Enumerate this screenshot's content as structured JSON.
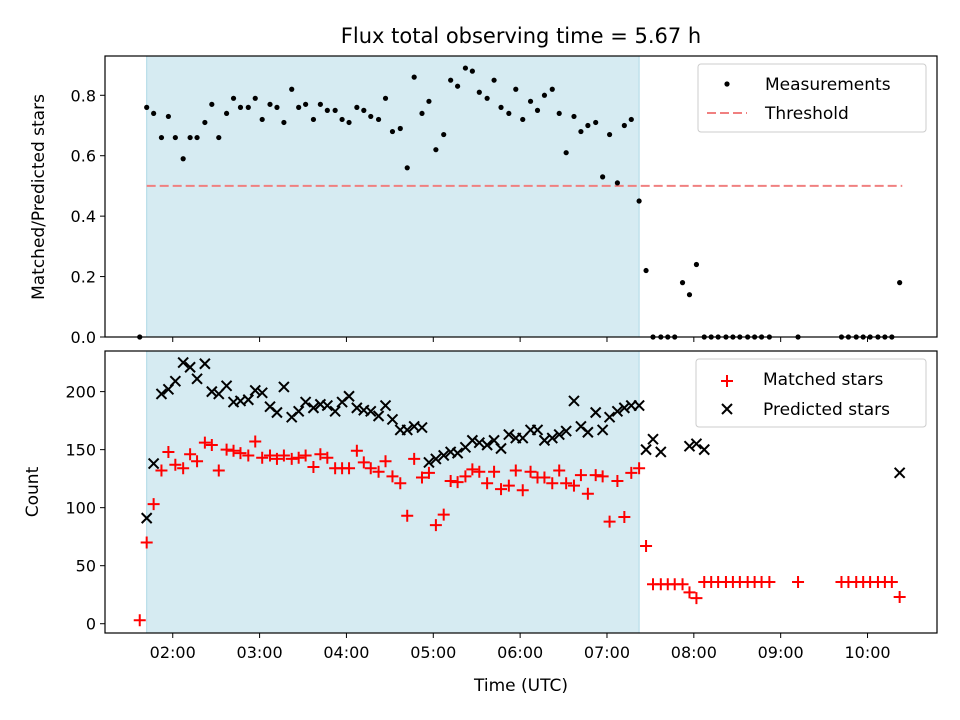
{
  "chart_data": [
    {
      "type": "scatter",
      "title": "Flux total observing time = 5.67 h",
      "xlabel": "",
      "ylabel": "Matched/Predicted stars",
      "xlim": [
        1.22,
        10.8
      ],
      "ylim": [
        0.0,
        0.93
      ],
      "y_ticks": [
        0.0,
        0.2,
        0.4,
        0.6,
        0.8
      ],
      "y_tick_labels": [
        "0.0",
        "0.2",
        "0.4",
        "0.6",
        "0.8"
      ],
      "shaded_interval": [
        1.7,
        7.37
      ],
      "threshold": {
        "value": 0.5,
        "x_range": [
          1.7,
          10.4
        ]
      },
      "legend": [
        "Measurements",
        "Threshold"
      ],
      "colors": {
        "measurements": "#000000",
        "threshold": "#f08080",
        "shade": "#add8e6"
      },
      "series": [
        {
          "name": "Measurements",
          "x": [
            1.62,
            1.7,
            1.78,
            1.87,
            1.95,
            2.03,
            2.12,
            2.2,
            2.28,
            2.37,
            2.45,
            2.53,
            2.62,
            2.7,
            2.78,
            2.87,
            2.95,
            3.03,
            3.12,
            3.2,
            3.28,
            3.37,
            3.45,
            3.53,
            3.62,
            3.7,
            3.78,
            3.87,
            3.95,
            4.03,
            4.12,
            4.2,
            4.28,
            4.37,
            4.45,
            4.53,
            4.62,
            4.7,
            4.78,
            4.87,
            4.95,
            5.03,
            5.12,
            5.2,
            5.28,
            5.37,
            5.45,
            5.53,
            5.62,
            5.7,
            5.78,
            5.87,
            5.95,
            6.03,
            6.12,
            6.2,
            6.28,
            6.37,
            6.45,
            6.53,
            6.62,
            6.7,
            6.78,
            6.87,
            6.95,
            7.03,
            7.12,
            7.2,
            7.28,
            7.37,
            7.45,
            7.53,
            7.62,
            7.7,
            7.78,
            7.87,
            7.95,
            8.03,
            8.12,
            8.2,
            8.28,
            8.37,
            8.45,
            8.53,
            8.62,
            8.7,
            8.78,
            8.87,
            9.2,
            9.7,
            9.78,
            9.87,
            9.95,
            10.03,
            10.12,
            10.2,
            10.28,
            10.37
          ],
          "y": [
            0.0,
            0.76,
            0.74,
            0.66,
            0.73,
            0.66,
            0.59,
            0.66,
            0.66,
            0.71,
            0.77,
            0.66,
            0.74,
            0.79,
            0.76,
            0.76,
            0.79,
            0.72,
            0.77,
            0.76,
            0.71,
            0.82,
            0.76,
            0.77,
            0.72,
            0.77,
            0.75,
            0.75,
            0.72,
            0.71,
            0.76,
            0.75,
            0.73,
            0.72,
            0.79,
            0.68,
            0.69,
            0.56,
            0.86,
            0.74,
            0.78,
            0.62,
            0.67,
            0.85,
            0.83,
            0.89,
            0.88,
            0.81,
            0.79,
            0.85,
            0.76,
            0.74,
            0.82,
            0.72,
            0.78,
            0.75,
            0.8,
            0.82,
            0.74,
            0.61,
            0.73,
            0.68,
            0.7,
            0.71,
            0.53,
            0.67,
            0.51,
            0.7,
            0.72,
            0.45,
            0.22,
            0.0,
            0.0,
            0.0,
            0.0,
            0.18,
            0.14,
            0.24,
            0.0,
            0.0,
            0.0,
            0.0,
            0.0,
            0.0,
            0.0,
            0.0,
            0.0,
            0.0,
            0.0,
            0.0,
            0.0,
            0.0,
            0.0,
            0.0,
            0.0,
            0.0,
            0.0,
            0.18
          ]
        }
      ]
    },
    {
      "type": "scatter",
      "title": "",
      "xlabel": "Time (UTC)",
      "ylabel": "Count",
      "xlim": [
        1.22,
        10.8
      ],
      "ylim": [
        -8,
        235
      ],
      "y_ticks": [
        0,
        50,
        100,
        150,
        200
      ],
      "y_tick_labels": [
        "0",
        "50",
        "100",
        "150",
        "200"
      ],
      "x_ticks": [
        2,
        3,
        4,
        5,
        6,
        7,
        8,
        9,
        10
      ],
      "x_tick_labels": [
        "02:00",
        "03:00",
        "04:00",
        "05:00",
        "06:00",
        "07:00",
        "08:00",
        "09:00",
        "10:00"
      ],
      "shaded_interval": [
        1.7,
        7.37
      ],
      "legend": [
        "Matched stars",
        "Predicted stars"
      ],
      "colors": {
        "matched": "#ff0000",
        "predicted": "#000000",
        "shade": "#add8e6"
      },
      "series": [
        {
          "name": "Matched stars",
          "x": [
            1.62,
            1.7,
            1.78,
            1.87,
            1.95,
            2.03,
            2.12,
            2.2,
            2.28,
            2.37,
            2.45,
            2.53,
            2.62,
            2.7,
            2.78,
            2.87,
            2.95,
            3.03,
            3.12,
            3.2,
            3.28,
            3.37,
            3.45,
            3.53,
            3.62,
            3.7,
            3.78,
            3.87,
            3.95,
            4.03,
            4.12,
            4.2,
            4.28,
            4.37,
            4.45,
            4.53,
            4.62,
            4.7,
            4.78,
            4.87,
            4.95,
            5.03,
            5.12,
            5.2,
            5.28,
            5.37,
            5.45,
            5.53,
            5.62,
            5.7,
            5.78,
            5.87,
            5.95,
            6.03,
            6.12,
            6.2,
            6.28,
            6.37,
            6.45,
            6.53,
            6.62,
            6.7,
            6.78,
            6.87,
            6.95,
            7.03,
            7.12,
            7.2,
            7.28,
            7.37,
            7.45,
            7.53,
            7.62,
            7.7,
            7.78,
            7.87,
            7.95,
            8.03,
            8.12,
            8.2,
            8.28,
            8.37,
            8.45,
            8.53,
            8.62,
            8.7,
            8.78,
            8.87,
            9.2,
            9.7,
            9.78,
            9.87,
            9.95,
            10.03,
            10.12,
            10.2,
            10.28,
            10.37
          ],
          "y": [
            3,
            70,
            103,
            132,
            148,
            137,
            134,
            146,
            140,
            156,
            154,
            132,
            150,
            149,
            147,
            145,
            157,
            143,
            145,
            142,
            145,
            142,
            143,
            145,
            135,
            146,
            143,
            134,
            134,
            134,
            149,
            139,
            134,
            131,
            140,
            127,
            121,
            93,
            142,
            126,
            130,
            85,
            94,
            123,
            122,
            127,
            133,
            131,
            121,
            131,
            116,
            119,
            132,
            115,
            131,
            126,
            126,
            121,
            132,
            121,
            119,
            128,
            112,
            128,
            127,
            88,
            123,
            92,
            130,
            134,
            67,
            34,
            34,
            34,
            34,
            34,
            27,
            22,
            36,
            36,
            36,
            36,
            36,
            36,
            36,
            36,
            36,
            36,
            36,
            36,
            36,
            36,
            36,
            36,
            36,
            36,
            36,
            23
          ]
        },
        {
          "name": "Predicted stars",
          "x": [
            1.7,
            1.78,
            1.87,
            1.95,
            2.03,
            2.12,
            2.2,
            2.28,
            2.37,
            2.45,
            2.53,
            2.62,
            2.7,
            2.78,
            2.87,
            2.95,
            3.03,
            3.12,
            3.2,
            3.28,
            3.37,
            3.45,
            3.53,
            3.62,
            3.7,
            3.78,
            3.87,
            3.95,
            4.03,
            4.12,
            4.2,
            4.28,
            4.37,
            4.45,
            4.53,
            4.62,
            4.7,
            4.78,
            4.87,
            4.95,
            5.03,
            5.12,
            5.2,
            5.28,
            5.37,
            5.45,
            5.53,
            5.62,
            5.7,
            5.78,
            5.87,
            5.95,
            6.03,
            6.12,
            6.2,
            6.28,
            6.37,
            6.45,
            6.53,
            6.62,
            6.7,
            6.78,
            6.87,
            6.95,
            7.03,
            7.12,
            7.2,
            7.28,
            7.37,
            7.45,
            7.53,
            7.62,
            7.95,
            8.03,
            8.12,
            10.37
          ],
          "y": [
            91,
            138,
            198,
            202,
            209,
            225,
            221,
            211,
            224,
            200,
            198,
            205,
            191,
            192,
            193,
            201,
            199,
            187,
            182,
            204,
            178,
            183,
            191,
            186,
            189,
            188,
            183,
            191,
            196,
            186,
            184,
            183,
            179,
            188,
            176,
            167,
            167,
            170,
            169,
            139,
            142,
            145,
            148,
            147,
            152,
            158,
            156,
            154,
            158,
            151,
            163,
            160,
            160,
            167,
            167,
            158,
            160,
            163,
            166,
            192,
            170,
            165,
            182,
            167,
            178,
            183,
            186,
            188,
            188,
            150,
            159,
            148,
            153,
            155,
            150,
            130
          ]
        }
      ]
    }
  ]
}
